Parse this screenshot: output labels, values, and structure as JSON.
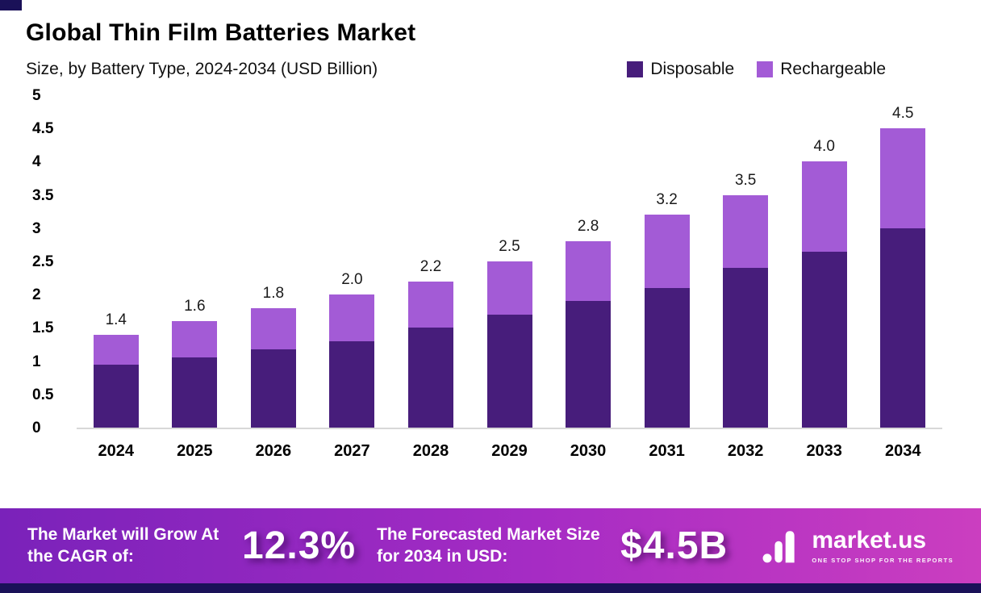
{
  "header": {
    "title": "Global Thin Film Batteries Market",
    "subtitle": "Size, by Battery Type, 2024-2034 (USD Billion)"
  },
  "legend": {
    "items": [
      {
        "label": "Disposable",
        "color": "#471d7b"
      },
      {
        "label": "Rechargeable",
        "color": "#a35bd6"
      }
    ]
  },
  "chart_data": {
    "type": "bar",
    "stacked": true,
    "title": "Global Thin Film Batteries Market",
    "subtitle": "Size, by Battery Type, 2024-2034 (USD Billion)",
    "categories": [
      "2024",
      "2025",
      "2026",
      "2027",
      "2028",
      "2029",
      "2030",
      "2031",
      "2032",
      "2033",
      "2034"
    ],
    "series": [
      {
        "name": "Disposable",
        "color": "#471d7b",
        "values": [
          0.95,
          1.05,
          1.18,
          1.3,
          1.5,
          1.7,
          1.9,
          2.1,
          2.4,
          2.65,
          3.0
        ]
      },
      {
        "name": "Rechargeable",
        "color": "#a35bd6",
        "values": [
          0.45,
          0.55,
          0.62,
          0.7,
          0.7,
          0.8,
          0.9,
          1.1,
          1.1,
          1.35,
          1.5
        ]
      }
    ],
    "totals_labels": [
      "1.4",
      "1.6",
      "1.8",
      "2.0",
      "2.2",
      "2.5",
      "2.8",
      "3.2",
      "3.5",
      "4.0",
      "4.5"
    ],
    "xlabel": "",
    "ylabel": "",
    "ylim": [
      0,
      5
    ],
    "ytick_labels": [
      "0",
      "0.5",
      "1",
      "1.5",
      "2",
      "2.5",
      "3",
      "3.5",
      "4",
      "4.5",
      "5"
    ],
    "grid": false,
    "legend_position": "top-right"
  },
  "footer": {
    "cagr_label": "The Market will Grow At the CAGR of:",
    "cagr_value": "12.3%",
    "forecast_label": "The Forecasted Market Size for 2034 in USD:",
    "forecast_value": "$4.5B",
    "brand_name": "market.us",
    "brand_tagline": "ONE STOP SHOP FOR THE REPORTS"
  }
}
